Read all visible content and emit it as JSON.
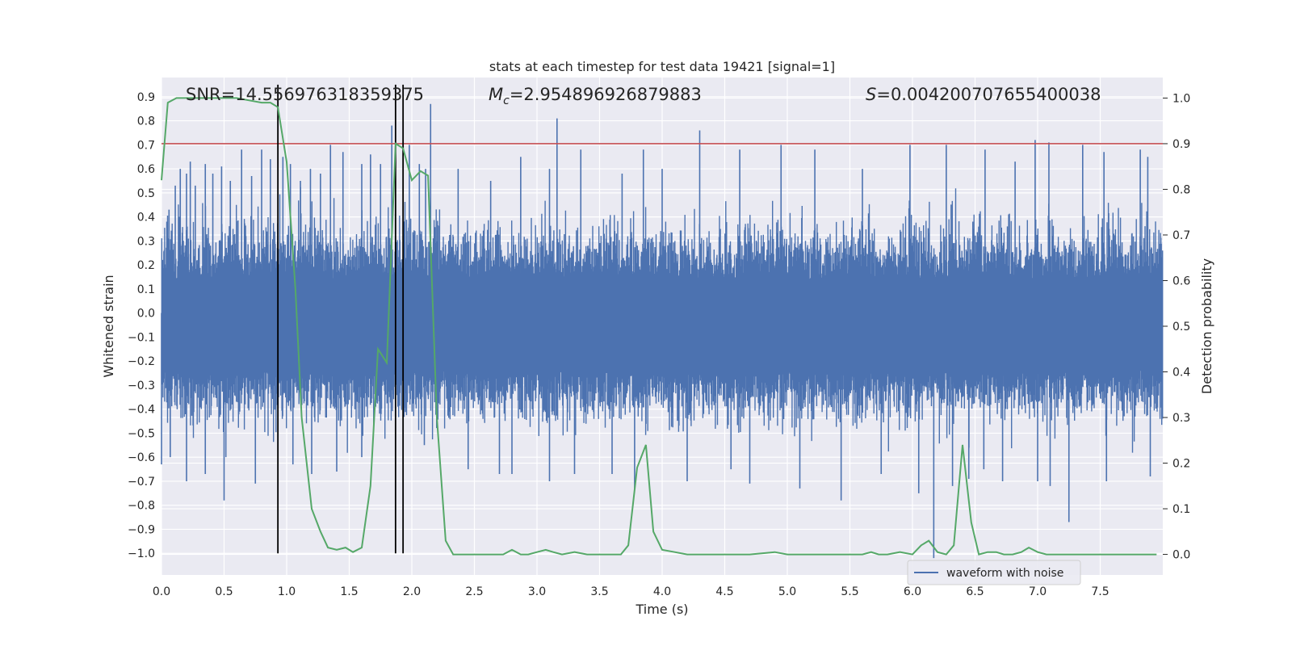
{
  "chart_data": {
    "type": "line",
    "title": "stats at each timestep for test data 19421 [signal=1]",
    "xlabel": "Time (s)",
    "ylabel": "Whitened strain",
    "y2label": "Detection probability",
    "xlim": [
      0.0,
      8.0
    ],
    "ylim": [
      -1.09,
      0.98
    ],
    "y2lim": [
      -0.045,
      1.045
    ],
    "x_ticks": [
      "0.0",
      "0.5",
      "1.0",
      "1.5",
      "2.0",
      "2.5",
      "3.0",
      "3.5",
      "4.0",
      "4.5",
      "5.0",
      "5.5",
      "6.0",
      "6.5",
      "7.0",
      "7.5"
    ],
    "y_ticks": [
      "0.9",
      "0.8",
      "0.7",
      "0.6",
      "0.5",
      "0.4",
      "0.3",
      "0.2",
      "0.1",
      "0.0",
      "−0.1",
      "−0.2",
      "−0.3",
      "−0.4",
      "−0.5",
      "−0.6",
      "−0.7",
      "−0.8",
      "−0.9",
      "−1.0"
    ],
    "y2_ticks": [
      "1.0",
      "0.9",
      "0.8",
      "0.7",
      "0.6",
      "0.5",
      "0.4",
      "0.3",
      "0.2",
      "0.1",
      "0.0"
    ],
    "grid": true,
    "legend": {
      "position": "bottom-center",
      "entries": [
        "waveform with noise"
      ]
    },
    "annotations": {
      "snr": "SNR=14.556976318359375",
      "mc_symbol": "M",
      "mc_subscript": "c",
      "mc_value": "=2.954896926879883",
      "s_symbol": "S",
      "s_value": "=0.004200707655400038"
    },
    "threshold": {
      "y2": 0.9,
      "color": "#c44e52"
    },
    "vlines_x": [
      0.93,
      1.87,
      1.93
    ],
    "series": [
      {
        "name": "waveform with noise",
        "color": "#4c72b0",
        "axis": "left",
        "sample_rate_hz": 2048,
        "spikes": [
          {
            "x": 0.06,
            "y": 0.43
          },
          {
            "x": 0.11,
            "y": 0.53
          },
          {
            "x": 0.15,
            "y": 0.6
          },
          {
            "x": 0.2,
            "y": 0.58
          },
          {
            "x": 0.23,
            "y": 0.63
          },
          {
            "x": 0.27,
            "y": 0.53
          },
          {
            "x": 0.35,
            "y": 0.62
          },
          {
            "x": 0.41,
            "y": 0.58
          },
          {
            "x": 0.48,
            "y": 0.61
          },
          {
            "x": 0.55,
            "y": 0.55
          },
          {
            "x": 0.64,
            "y": 0.68
          },
          {
            "x": 0.72,
            "y": 0.57
          },
          {
            "x": 0.8,
            "y": 0.68
          },
          {
            "x": 0.87,
            "y": 0.64
          },
          {
            "x": 0.97,
            "y": 0.65
          },
          {
            "x": 1.03,
            "y": 0.62
          },
          {
            "x": 1.11,
            "y": 0.55
          },
          {
            "x": 1.19,
            "y": 0.6
          },
          {
            "x": 1.27,
            "y": 0.58
          },
          {
            "x": 1.35,
            "y": 0.7
          },
          {
            "x": 1.45,
            "y": 0.67
          },
          {
            "x": 1.6,
            "y": 0.62
          },
          {
            "x": 1.67,
            "y": 0.66
          },
          {
            "x": 1.75,
            "y": 0.62
          },
          {
            "x": 1.84,
            "y": 0.78
          },
          {
            "x": 1.98,
            "y": 0.7
          },
          {
            "x": 2.06,
            "y": 0.62
          },
          {
            "x": 2.11,
            "y": 0.6
          },
          {
            "x": 2.15,
            "y": 0.87
          },
          {
            "x": 2.37,
            "y": 0.6
          },
          {
            "x": 2.63,
            "y": 0.55
          },
          {
            "x": 2.87,
            "y": 0.65
          },
          {
            "x": 3.1,
            "y": 0.6
          },
          {
            "x": 3.16,
            "y": 0.81
          },
          {
            "x": 3.35,
            "y": 0.68
          },
          {
            "x": 3.68,
            "y": 0.58
          },
          {
            "x": 3.85,
            "y": 0.68
          },
          {
            "x": 4.0,
            "y": 0.6
          },
          {
            "x": 4.3,
            "y": 0.76
          },
          {
            "x": 4.62,
            "y": 0.68
          },
          {
            "x": 4.95,
            "y": 0.7
          },
          {
            "x": 5.22,
            "y": 0.68
          },
          {
            "x": 5.6,
            "y": 0.6
          },
          {
            "x": 5.98,
            "y": 0.7
          },
          {
            "x": 6.27,
            "y": 0.7
          },
          {
            "x": 6.58,
            "y": 0.68
          },
          {
            "x": 6.82,
            "y": 0.63
          },
          {
            "x": 6.98,
            "y": 0.72
          },
          {
            "x": 7.09,
            "y": 0.71
          },
          {
            "x": 7.36,
            "y": 0.7
          },
          {
            "x": 7.53,
            "y": 0.67
          },
          {
            "x": 7.82,
            "y": 0.68
          },
          {
            "x": 7.88,
            "y": 0.65
          },
          {
            "x": 0.0,
            "y": -0.63
          },
          {
            "x": 0.07,
            "y": -0.6
          },
          {
            "x": 0.2,
            "y": -0.7
          },
          {
            "x": 0.35,
            "y": -0.67
          },
          {
            "x": 0.5,
            "y": -0.78
          },
          {
            "x": 0.75,
            "y": -0.71
          },
          {
            "x": 1.05,
            "y": -0.63
          },
          {
            "x": 1.2,
            "y": -0.67
          },
          {
            "x": 1.4,
            "y": -0.66
          },
          {
            "x": 1.6,
            "y": -0.6
          },
          {
            "x": 2.1,
            "y": -0.55
          },
          {
            "x": 2.45,
            "y": -0.65
          },
          {
            "x": 2.7,
            "y": -0.67
          },
          {
            "x": 2.8,
            "y": -0.67
          },
          {
            "x": 3.1,
            "y": -0.7
          },
          {
            "x": 3.3,
            "y": -0.67
          },
          {
            "x": 3.6,
            "y": -0.67
          },
          {
            "x": 3.78,
            "y": -0.73
          },
          {
            "x": 4.2,
            "y": -0.7
          },
          {
            "x": 4.55,
            "y": -0.65
          },
          {
            "x": 4.7,
            "y": -0.71
          },
          {
            "x": 5.1,
            "y": -0.73
          },
          {
            "x": 5.43,
            "y": -0.78
          },
          {
            "x": 5.75,
            "y": -0.67
          },
          {
            "x": 6.05,
            "y": -0.75
          },
          {
            "x": 6.17,
            "y": -1.02
          },
          {
            "x": 6.32,
            "y": -0.72
          },
          {
            "x": 6.45,
            "y": -0.69
          },
          {
            "x": 6.57,
            "y": -0.65
          },
          {
            "x": 6.72,
            "y": -0.7
          },
          {
            "x": 7.0,
            "y": -0.7
          },
          {
            "x": 7.1,
            "y": -0.72
          },
          {
            "x": 7.25,
            "y": -0.87
          },
          {
            "x": 7.55,
            "y": -0.7
          },
          {
            "x": 7.9,
            "y": -0.68
          }
        ]
      },
      {
        "name": "",
        "color": "#55a868",
        "axis": "right",
        "x": [
          0.0,
          0.05,
          0.12,
          0.2,
          0.3,
          0.4,
          0.5,
          0.6,
          0.7,
          0.8,
          0.87,
          0.93,
          1.0,
          1.07,
          1.12,
          1.2,
          1.27,
          1.33,
          1.4,
          1.47,
          1.53,
          1.6,
          1.67,
          1.73,
          1.8,
          1.87,
          1.93,
          2.0,
          2.07,
          2.13,
          2.2,
          2.27,
          2.33,
          2.4,
          2.5,
          2.6,
          2.73,
          2.8,
          2.87,
          2.93,
          3.0,
          3.07,
          3.13,
          3.2,
          3.3,
          3.4,
          3.5,
          3.6,
          3.67,
          3.73,
          3.8,
          3.87,
          3.93,
          4.0,
          4.1,
          4.2,
          4.3,
          4.5,
          4.7,
          4.9,
          5.0,
          5.2,
          5.4,
          5.6,
          5.67,
          5.73,
          5.8,
          5.9,
          6.0,
          6.07,
          6.13,
          6.2,
          6.27,
          6.33,
          6.4,
          6.47,
          6.53,
          6.6,
          6.67,
          6.73,
          6.8,
          6.87,
          6.93,
          7.0,
          7.07,
          7.2,
          7.4,
          7.6,
          7.8,
          7.95
        ],
        "values": [
          0.82,
          0.99,
          1.0,
          1.0,
          1.0,
          1.0,
          1.0,
          1.0,
          0.995,
          0.99,
          0.99,
          0.98,
          0.86,
          0.58,
          0.3,
          0.1,
          0.05,
          0.015,
          0.01,
          0.015,
          0.005,
          0.015,
          0.15,
          0.45,
          0.42,
          0.9,
          0.89,
          0.82,
          0.84,
          0.83,
          0.3,
          0.03,
          0.0,
          0.0,
          0.0,
          0.0,
          0.0,
          0.01,
          0.0,
          0.0,
          0.005,
          0.01,
          0.005,
          0.0,
          0.005,
          0.0,
          0.0,
          0.0,
          0.0,
          0.02,
          0.19,
          0.24,
          0.05,
          0.01,
          0.005,
          0.0,
          0.0,
          0.0,
          0.0,
          0.005,
          0.0,
          0.0,
          0.0,
          0.0,
          0.005,
          0.0,
          0.0,
          0.005,
          0.0,
          0.02,
          0.03,
          0.005,
          0.0,
          0.02,
          0.24,
          0.07,
          0.0,
          0.005,
          0.005,
          0.0,
          0.0,
          0.005,
          0.015,
          0.005,
          0.0,
          0.0,
          0.0,
          0.0,
          0.0,
          0.0
        ]
      }
    ]
  }
}
